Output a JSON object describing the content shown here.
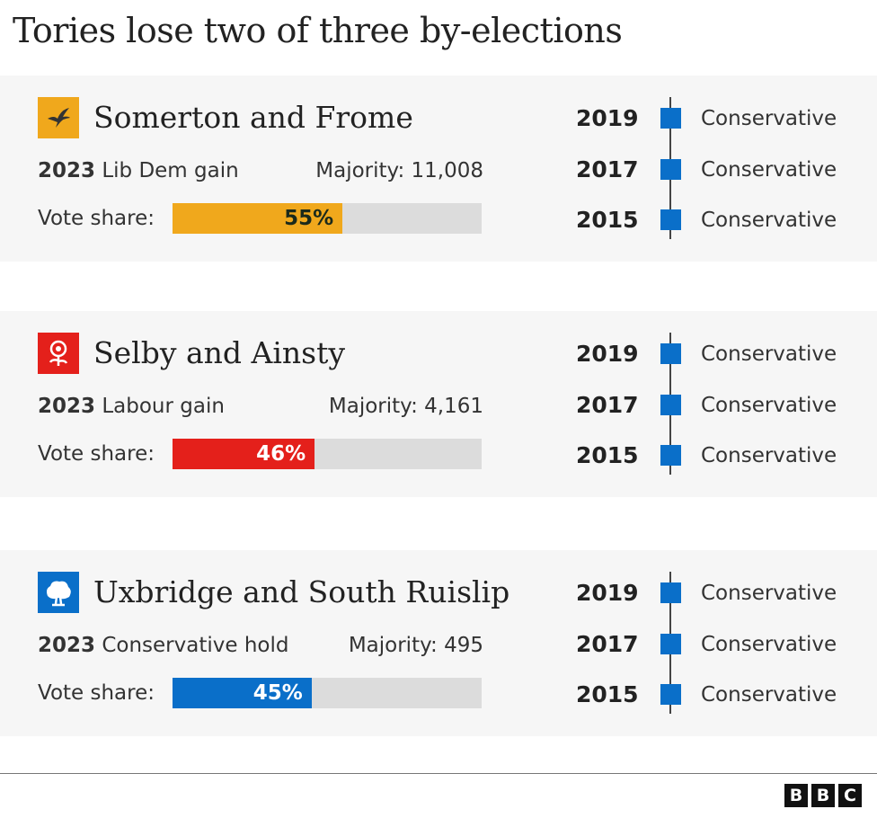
{
  "title": "Tories lose two of three by-elections",
  "colors": {
    "libdem": "#f0a81c",
    "labour": "#e4201b",
    "conservative": "#0a6fc9",
    "track": "#dcdcdc",
    "panel": "#f6f6f6"
  },
  "vote_share_label": "Vote share:",
  "constituencies": [
    {
      "name": "Somerton and Frome",
      "logo": "libdem-bird-icon",
      "year": "2023",
      "result": "Lib Dem gain",
      "majority": "Majority: 11,008",
      "share": 55,
      "share_label": "55%",
      "color": "#f0a81c",
      "pct_color": "#1b2a1b",
      "history": [
        {
          "year": "2019",
          "party": "Conservative"
        },
        {
          "year": "2017",
          "party": "Conservative"
        },
        {
          "year": "2015",
          "party": "Conservative"
        }
      ]
    },
    {
      "name": "Selby and Ainsty",
      "logo": "labour-rose-icon",
      "year": "2023",
      "result": "Labour gain",
      "majority": "Majority: 4,161",
      "share": 46,
      "share_label": "46%",
      "color": "#e4201b",
      "pct_color": "#ffffff",
      "history": [
        {
          "year": "2019",
          "party": "Conservative"
        },
        {
          "year": "2017",
          "party": "Conservative"
        },
        {
          "year": "2015",
          "party": "Conservative"
        }
      ]
    },
    {
      "name": "Uxbridge and South Ruislip",
      "logo": "conservative-tree-icon",
      "year": "2023",
      "result": "Conservative hold",
      "majority": "Majority: 495",
      "share": 45,
      "share_label": "45%",
      "color": "#0a6fc9",
      "pct_color": "#ffffff",
      "history": [
        {
          "year": "2019",
          "party": "Conservative"
        },
        {
          "year": "2017",
          "party": "Conservative"
        },
        {
          "year": "2015",
          "party": "Conservative"
        }
      ]
    }
  ],
  "chart_data": {
    "type": "bar",
    "categories": [
      "Somerton and Frome",
      "Selby and Ainsty",
      "Uxbridge and South Ruislip"
    ],
    "values": [
      55,
      46,
      45
    ],
    "ylim": [
      0,
      100
    ],
    "orientation": "horizontal"
  },
  "footer": {
    "logo": [
      "B",
      "B",
      "C"
    ]
  }
}
